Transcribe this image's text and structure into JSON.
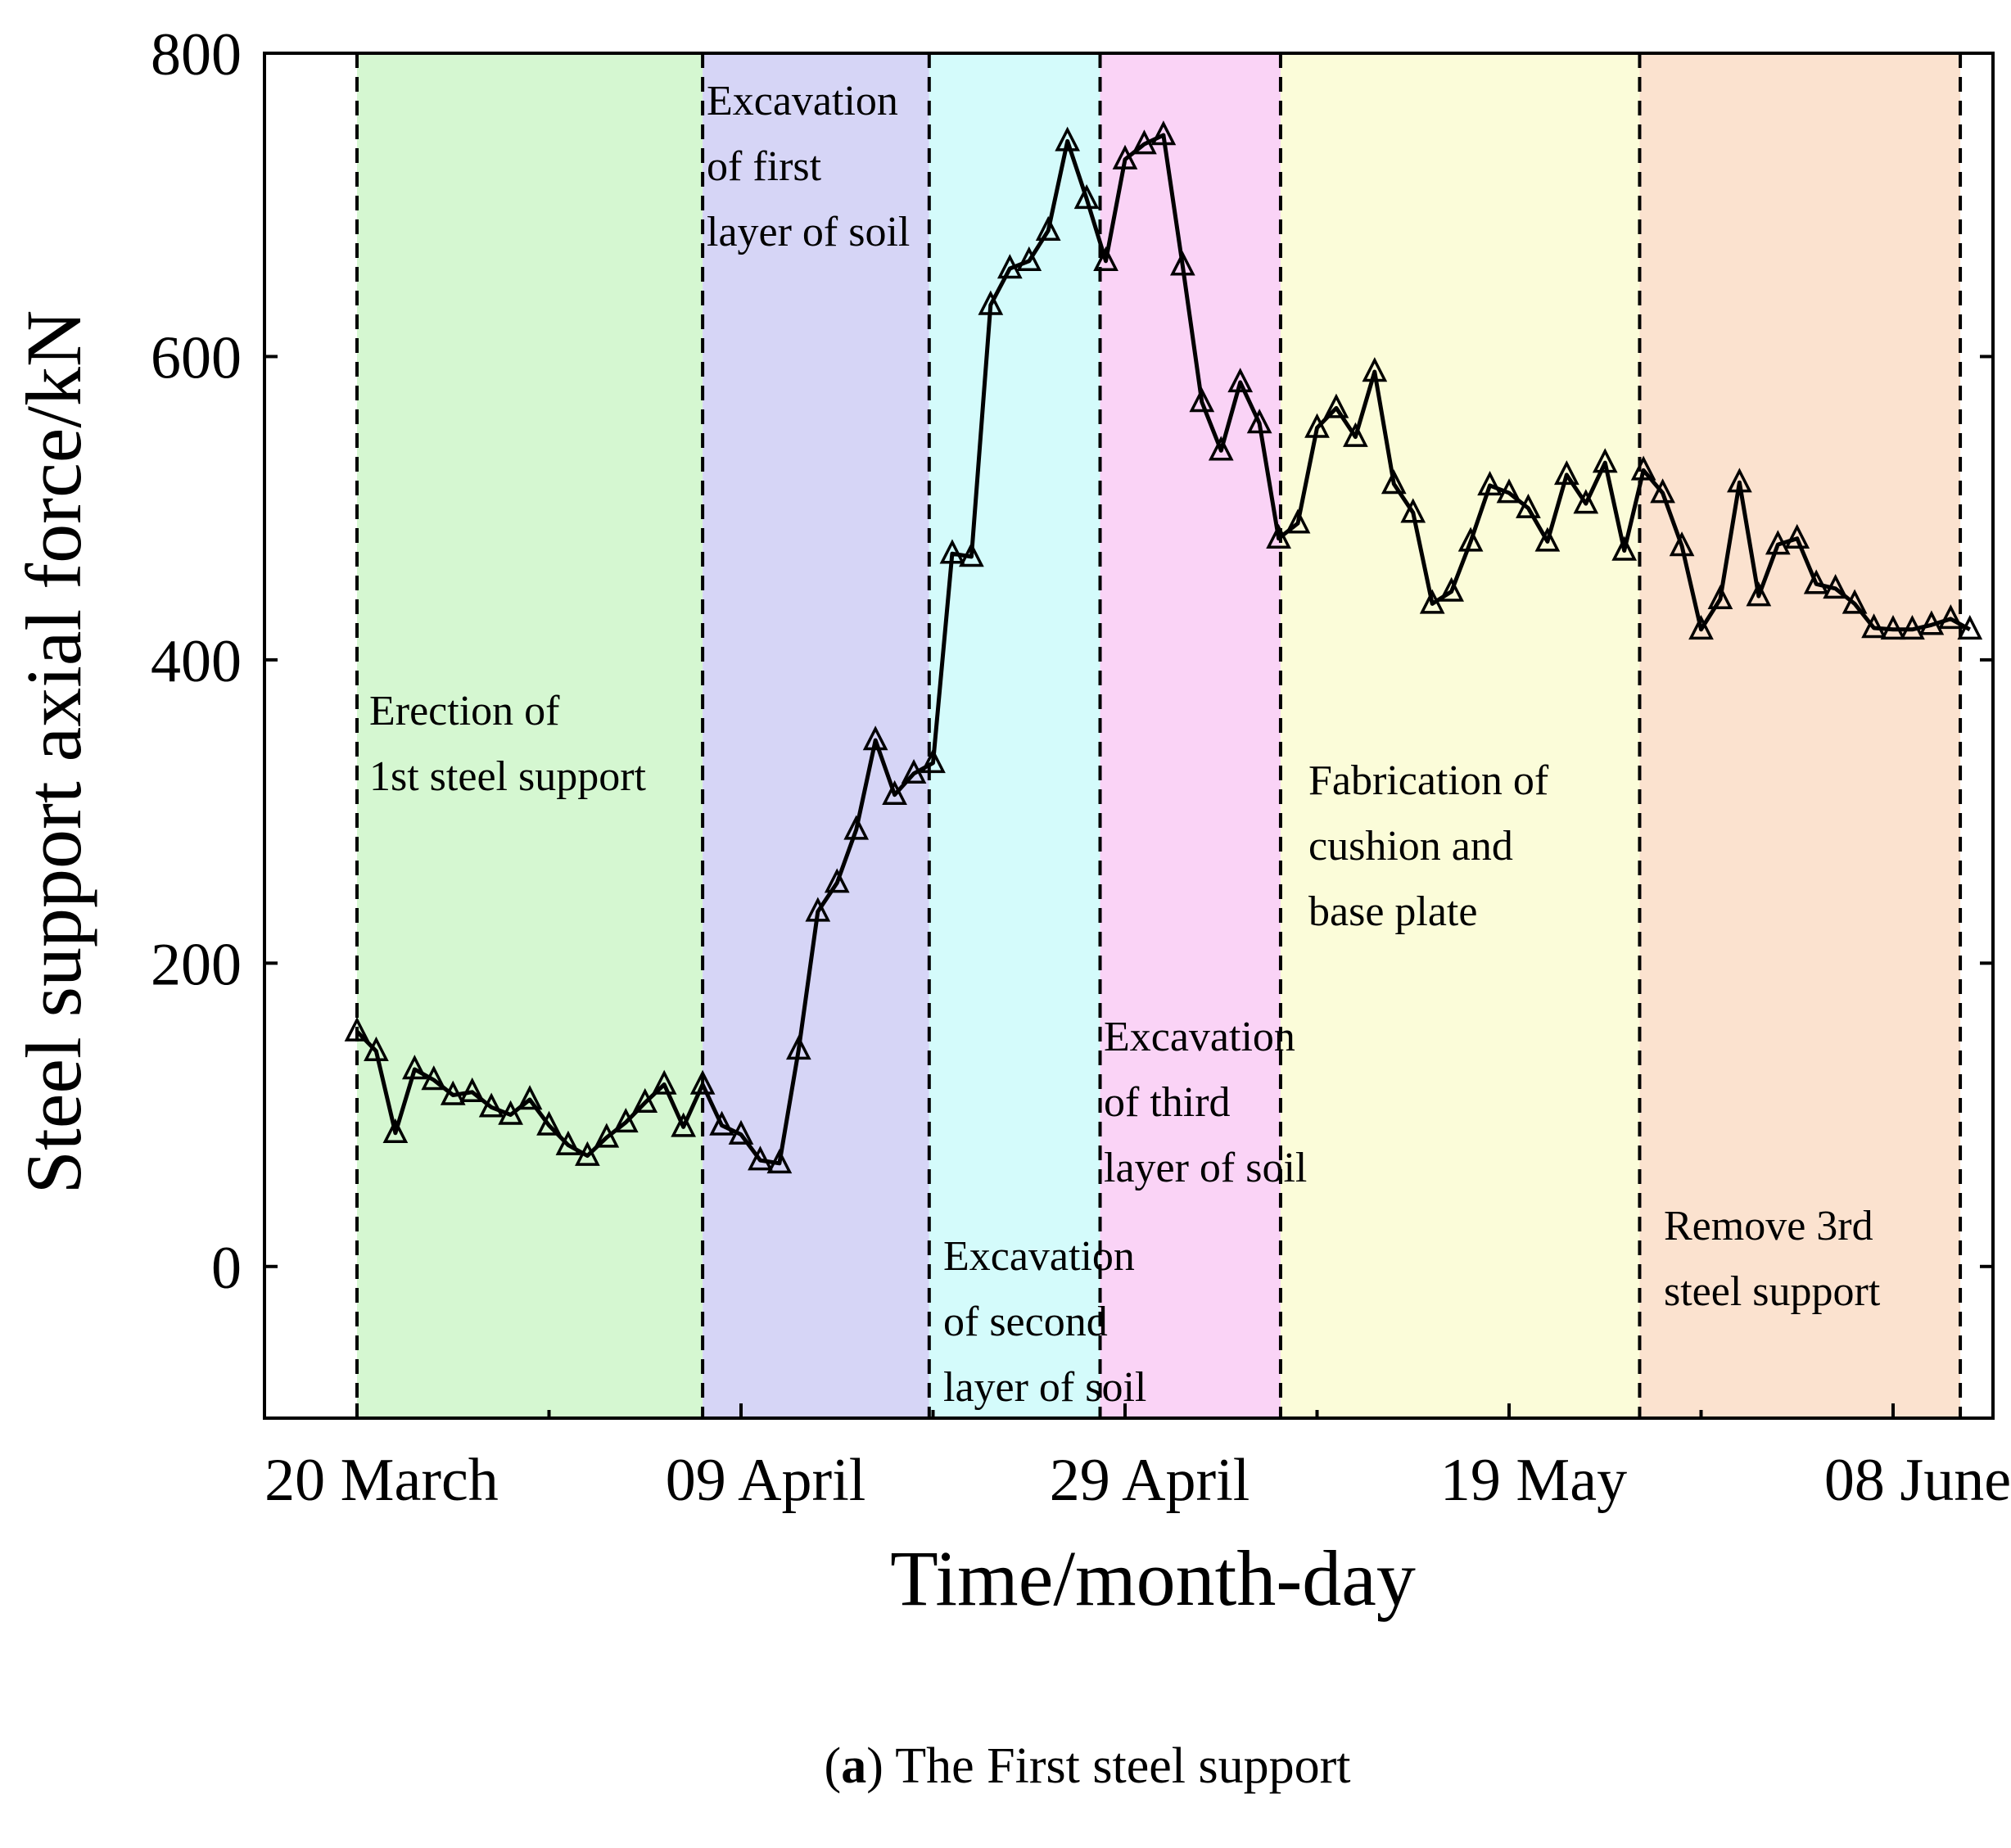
{
  "chart_data": {
    "type": "line",
    "xlabel": "Time/month-day",
    "ylabel": "Steel support axial force/kN",
    "ylim": [
      -100,
      800
    ],
    "yticks": [
      0,
      200,
      400,
      600,
      800
    ],
    "xticks": [
      {
        "day": 0,
        "label": "20 March"
      },
      {
        "day": 20,
        "label": "09 April"
      },
      {
        "day": 40,
        "label": "29 April"
      },
      {
        "day": 60,
        "label": "19 May"
      },
      {
        "day": 80,
        "label": "08 June"
      }
    ],
    "xlim_days": [
      -5,
      85
    ],
    "minor_ticks_days": [
      10,
      30,
      50,
      70
    ],
    "marker": "open-triangle",
    "line_color": "#000000",
    "phases": [
      {
        "start": 0,
        "end": 18,
        "color": "#d5f7d1",
        "label_lines": [
          "Erection of",
          "1st steel support"
        ]
      },
      {
        "start": 18,
        "end": 29.8,
        "color": "#d6d5f6",
        "label_lines": [
          "Excavation",
          "of first",
          "layer of soil"
        ]
      },
      {
        "start": 29.8,
        "end": 38.7,
        "color": "#d4fbfb",
        "label_lines": [
          "Excavation",
          "of second",
          "layer of soil"
        ]
      },
      {
        "start": 38.7,
        "end": 48.1,
        "color": "#fad3f6",
        "label_lines": [
          "Excavation",
          "of third",
          "layer of soil"
        ]
      },
      {
        "start": 48.1,
        "end": 66.8,
        "color": "#fbfcd9",
        "label_lines": [
          "Fabrication of",
          "cushion and",
          "base plate"
        ]
      },
      {
        "start": 66.8,
        "end": 83.5,
        "color": "#fbe2cf",
        "label_lines": [
          "Remove 3rd",
          "steel support"
        ]
      }
    ],
    "boundaries_days": [
      0,
      18,
      29.8,
      38.7,
      48.1,
      66.8,
      83.5
    ],
    "series": [
      {
        "x": [
          0,
          1,
          2,
          3,
          4,
          5,
          6,
          7,
          8,
          9,
          10,
          11,
          12,
          13,
          14,
          15,
          16,
          17,
          18,
          19,
          20,
          21,
          22,
          23,
          24,
          25,
          26,
          27,
          28,
          29,
          30,
          31,
          32,
          33,
          34,
          35,
          36,
          37,
          38,
          39,
          40,
          41,
          42,
          43,
          44,
          45,
          46,
          47,
          48,
          49,
          50,
          51,
          52,
          53,
          54,
          55,
          56,
          57,
          58,
          59,
          60,
          61,
          62,
          63,
          64,
          65,
          66,
          67,
          68,
          69,
          70,
          71,
          72,
          73,
          74,
          75,
          76,
          77,
          78,
          79,
          80,
          81,
          82,
          83,
          84
        ],
        "y": [
          155,
          142,
          88,
          130,
          123,
          113,
          115,
          105,
          100,
          110,
          93,
          80,
          73,
          85,
          95,
          108,
          120,
          92,
          120,
          93,
          87,
          70,
          68,
          143,
          234,
          253,
          288,
          347,
          311,
          325,
          332,
          470,
          468,
          634,
          658,
          663,
          683,
          742,
          704,
          663,
          730,
          740,
          746,
          660,
          570,
          538,
          583,
          556,
          480,
          490,
          553,
          566,
          547,
          590,
          516,
          497,
          437,
          445,
          478,
          515,
          510,
          500,
          478,
          522,
          503,
          530,
          472,
          525,
          510,
          475,
          420,
          440,
          517,
          442,
          476,
          480,
          450,
          447,
          437,
          421,
          420,
          420,
          423,
          427,
          420
        ]
      }
    ]
  },
  "caption": {
    "letter": "a",
    "text": " The First steel support"
  }
}
